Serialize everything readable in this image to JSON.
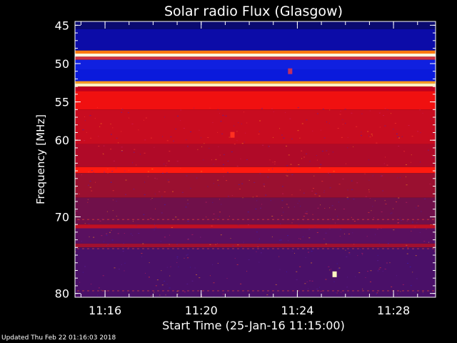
{
  "chart_data": {
    "type": "heatmap",
    "title": "Solar radio Flux (Glasgow)",
    "xlabel": "Start Time (25-Jan-16 11:15:00)",
    "ylabel": "Frequency [MHz]",
    "x_ticks": [
      "11:16",
      "11:20",
      "11:24",
      "11:28"
    ],
    "x_tick_minutes": [
      16,
      20,
      24,
      28
    ],
    "xlim_minutes": [
      14.75,
      29.75
    ],
    "y_ticks": [
      45,
      50,
      55,
      60,
      70,
      80
    ],
    "ylim": [
      44.5,
      80.5
    ],
    "bands": [
      {
        "from": 44.5,
        "to": 45.5,
        "color": "#0a0a70"
      },
      {
        "from": 45.5,
        "to": 48.3,
        "color": "#0c0ca8"
      },
      {
        "from": 48.3,
        "to": 48.7,
        "color": "#ff7a10"
      },
      {
        "from": 48.7,
        "to": 49.1,
        "color": "#fffbe0"
      },
      {
        "from": 49.1,
        "to": 49.5,
        "color": "#d03040"
      },
      {
        "from": 49.5,
        "to": 50.8,
        "color": "#1020e0"
      },
      {
        "from": 50.8,
        "to": 52.3,
        "color": "#0a1adc"
      },
      {
        "from": 52.3,
        "to": 52.6,
        "color": "#ff9a20"
      },
      {
        "from": 52.6,
        "to": 53.0,
        "color": "#fff0c0"
      },
      {
        "from": 53.0,
        "to": 53.6,
        "color": "#c00020"
      },
      {
        "from": 53.6,
        "to": 56.0,
        "color": "#f01010"
      },
      {
        "from": 56.0,
        "to": 60.5,
        "color": "#c80c20"
      },
      {
        "from": 60.5,
        "to": 63.5,
        "color": "#b00a28"
      },
      {
        "from": 63.5,
        "to": 64.3,
        "color": "#ff1a10"
      },
      {
        "from": 64.3,
        "to": 67.5,
        "color": "#9a1030"
      },
      {
        "from": 67.5,
        "to": 71.0,
        "color": "#70104a"
      },
      {
        "from": 71.0,
        "to": 71.5,
        "color": "#c01024"
      },
      {
        "from": 71.5,
        "to": 73.5,
        "color": "#5a1060"
      },
      {
        "from": 73.5,
        "to": 74.0,
        "color": "#a01030"
      },
      {
        "from": 74.0,
        "to": 80.5,
        "color": "#4a1068"
      }
    ],
    "features": [
      {
        "minute": 25.55,
        "freq": 77.5,
        "color": "#fff8c0"
      },
      {
        "minute": 21.3,
        "freq": 59.3,
        "color": "#ff3020"
      },
      {
        "minute": 23.7,
        "freq": 51.0,
        "color": "#c03060"
      }
    ]
  },
  "footer_text": "Updated Thu Feb 22 01:16:03 2018",
  "colors": {
    "background": "#000000",
    "axis": "#ffffff"
  }
}
